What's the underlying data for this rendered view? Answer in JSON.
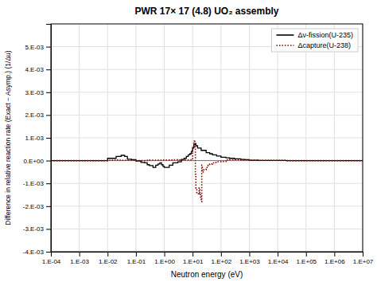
{
  "chart_data": {
    "type": "step",
    "title": "PWR 17× 17 (4.8) UO₂ assembly",
    "xlabel": "Neutron energy (eV)",
    "ylabel": "Difference in relative reaction rate (Exact − Asymp.) (1/Δu)",
    "log": "x",
    "grid": true,
    "legend": "upper right",
    "xlim": [
      0.0001,
      10000000
    ],
    "ylim": [
      -0.004,
      0.006
    ],
    "xticks": [
      {
        "value": 0.0001,
        "label": "1.E-04"
      },
      {
        "value": 0.001,
        "label": "1.E-03"
      },
      {
        "value": 0.01,
        "label": "1.E-02"
      },
      {
        "value": 0.1,
        "label": "1.E-01"
      },
      {
        "value": 1,
        "label": "1.E+00"
      },
      {
        "value": 10,
        "label": "1.E+01"
      },
      {
        "value": 100,
        "label": "1.E+02"
      },
      {
        "value": 1000,
        "label": "1.E+03"
      },
      {
        "value": 10000,
        "label": "1.E+04"
      },
      {
        "value": 100000,
        "label": "1.E+05"
      },
      {
        "value": 1000000,
        "label": "1.E+06"
      },
      {
        "value": 10000000,
        "label": "1.E+07"
      }
    ],
    "yticks": [
      {
        "value": -0.004,
        "label": "-4.E-03"
      },
      {
        "value": -0.003,
        "label": "-3.E-03"
      },
      {
        "value": -0.002,
        "label": "-2.E-03"
      },
      {
        "value": -0.001,
        "label": "-1.E-03"
      },
      {
        "value": 0,
        "label": "0.E+00"
      },
      {
        "value": 0.001,
        "label": "1.E-03"
      },
      {
        "value": 0.002,
        "label": "2.E-03"
      },
      {
        "value": 0.003,
        "label": "3.E-03"
      },
      {
        "value": 0.004,
        "label": "4.E-03"
      },
      {
        "value": 0.005,
        "label": "5.E-03"
      }
    ],
    "reference_lines": [
      {
        "value": 0,
        "color": "darkred"
      }
    ],
    "series": [
      {
        "name": "Δν-fission(U-235)",
        "color": "#000000",
        "line_style": "solid",
        "x": [
          0.0001,
          0.00013,
          0.00018,
          0.00025,
          0.00035,
          0.0005,
          0.0007,
          0.001,
          0.0013,
          0.0018,
          0.0025,
          0.0035,
          0.005,
          0.007,
          0.01,
          0.015,
          0.02,
          0.025,
          0.03,
          0.04,
          0.05,
          0.07,
          0.1,
          0.15,
          0.2,
          0.25,
          0.3,
          0.4,
          0.5,
          0.6,
          0.7,
          0.8,
          0.9,
          1.0,
          1.5,
          2.0,
          3.0,
          4.0,
          5.0,
          6.0,
          7.0,
          8.0,
          9.0,
          10.0,
          11.0,
          12.0,
          13.0,
          15.0,
          20.0,
          30.0,
          40.0,
          50.0,
          70.0,
          100.0,
          150.0,
          200.0,
          300.0,
          500.0,
          700.0,
          1000.0,
          2000.0,
          5000.0,
          10000.0,
          20000.0,
          50000.0,
          100000.0,
          200000.0,
          500000.0,
          1000000.0,
          2000000.0,
          5000000.0,
          10000000.0
        ],
        "values": [
          0.0,
          0.0,
          0.0,
          0.0,
          0.0,
          0.0,
          0.0,
          0.0,
          0.0,
          0.0,
          0.0,
          0.0,
          0.0,
          0.0,
          0.0001,
          0.0001,
          0.00018,
          0.00018,
          0.00023,
          0.00018,
          6e-05,
          4e-05,
          -2e-05,
          -8e-05,
          -0.0001,
          -0.00018,
          -0.00022,
          -0.0003,
          -0.0002,
          -0.00015,
          -0.0001,
          -0.00018,
          -0.00025,
          -0.0003,
          -0.0002,
          -0.0001,
          -5e-05,
          5e-05,
          0.0001,
          0.00018,
          0.00025,
          0.0003,
          0.0004,
          0.00055,
          0.0007,
          0.00075,
          0.00065,
          0.00055,
          0.00045,
          0.00035,
          0.0003,
          0.00025,
          0.0002,
          0.00015,
          0.00012,
          0.0001,
          8e-05,
          5e-05,
          4e-05,
          2e-05,
          1e-05,
          1e-05,
          1e-05,
          0.0,
          0.0,
          0.0,
          0.0,
          0.0,
          0.0,
          0.0,
          0.0,
          0.0
        ]
      },
      {
        "name": "Δcapture(U-238)",
        "color": "#8b0000",
        "line_style": "dotted",
        "x": [
          0.0001,
          0.00013,
          0.00018,
          0.00025,
          0.00035,
          0.0005,
          0.0007,
          0.001,
          0.0013,
          0.0018,
          0.0025,
          0.0035,
          0.005,
          0.007,
          0.01,
          0.015,
          0.02,
          0.025,
          0.03,
          0.04,
          0.05,
          0.07,
          0.1,
          0.15,
          0.2,
          0.25,
          0.3,
          0.4,
          0.5,
          0.6,
          0.7,
          0.8,
          0.9,
          1.0,
          1.5,
          2.0,
          3.0,
          4.0,
          5.0,
          6.0,
          7.0,
          8.0,
          9.0,
          10.0,
          11.0,
          11.5,
          12.0,
          12.5,
          13.0,
          14.0,
          15.0,
          16.0,
          17.0,
          18.0,
          19.0,
          20.0,
          21.0,
          22.0,
          25.0,
          30.0,
          35.0,
          40.0,
          50.0,
          60.0,
          70.0,
          100.0,
          150.0,
          200.0,
          300.0,
          500.0,
          700.0,
          1000.0,
          2000.0,
          5000.0,
          10000.0,
          20000.0,
          50000.0,
          100000.0,
          200000.0,
          500000.0,
          1000000.0,
          2000000.0,
          5000000.0,
          10000000.0
        ],
        "values": [
          0.0,
          0.0,
          0.0,
          0.0,
          0.0,
          0.0,
          0.0,
          0.0,
          0.0,
          0.0,
          0.0,
          0.0,
          0.0,
          0.0,
          1e-05,
          2e-05,
          3e-05,
          2e-05,
          1e-05,
          1e-05,
          1e-05,
          1e-05,
          0.0,
          0.0,
          0.0,
          1e-05,
          2e-05,
          2e-05,
          2e-05,
          2e-05,
          2e-05,
          2e-05,
          3e-05,
          3e-05,
          3e-05,
          4e-05,
          3e-05,
          3e-05,
          3e-05,
          3e-05,
          3e-05,
          3e-05,
          4e-05,
          0.0006,
          0.0008,
          0.0009,
          0.0006,
          -0.0006,
          -0.0012,
          -0.0014,
          -0.0014,
          -0.0015,
          -0.0012,
          -0.0014,
          -0.0016,
          -0.0018,
          -0.0002,
          -0.0005,
          -0.0004,
          -0.0003,
          -0.0002,
          -0.00015,
          -0.0001,
          -8e-05,
          -5e-05,
          -4e-05,
          3e-05,
          4e-05,
          4e-05,
          3e-05,
          3e-05,
          2e-05,
          1e-05,
          1e-05,
          1e-05,
          0.0,
          0.0,
          0.0,
          0.0,
          0.0,
          0.0,
          0.0,
          0.0,
          0.0
        ]
      }
    ]
  }
}
